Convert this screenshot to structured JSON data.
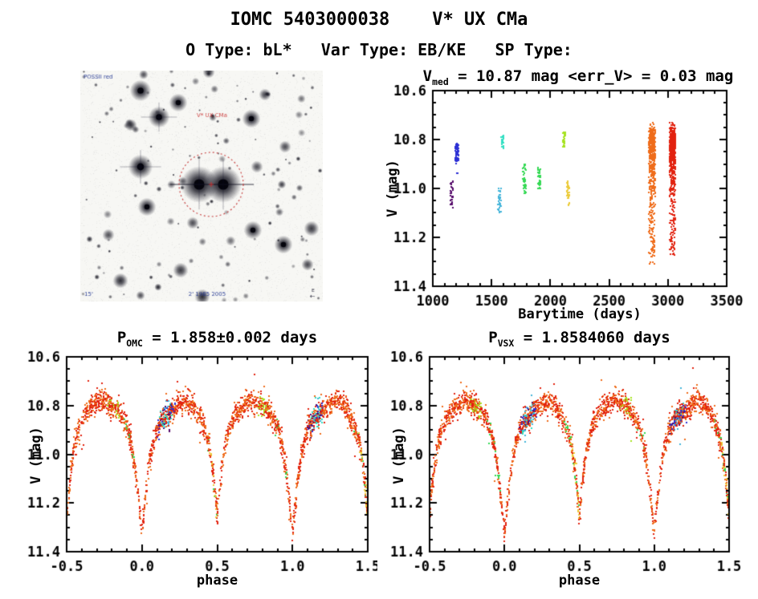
{
  "header": {
    "title": "IOMC 5403000038    V* UX CMa",
    "subtitle": "O Type: bL*   Var Type: EB/KE   SP Type:"
  },
  "palette": {
    "purple": "#550a6a",
    "blue": "#2b2fd4",
    "cyan": "#30dfc2",
    "lightblue": "#43b4da",
    "green": "#35d954",
    "yellowgreen": "#a6e320",
    "yellow": "#eccb38",
    "orange": "#ef6c1a",
    "red": "#e2220f",
    "axis": "#000000",
    "annotation_red": "#c43434",
    "annotation_blue": "#1a2f8f"
  },
  "finder_chart": {
    "survey_label": "POSSII red",
    "target_label": "V* UX CMa",
    "epoch_label": "2' 1985 2005",
    "scale_label": "15'",
    "compass_label": "E"
  },
  "folded_model": {
    "phase": [
      0.0,
      0.02,
      0.045,
      0.07,
      0.1,
      0.14,
      0.18,
      0.22,
      0.26,
      0.3,
      0.34,
      0.38,
      0.42,
      0.45,
      0.475,
      0.5,
      0.525,
      0.55,
      0.58,
      0.62,
      0.66,
      0.7,
      0.74,
      0.78,
      0.82,
      0.86,
      0.9,
      0.93,
      0.955,
      0.98,
      1.0
    ],
    "mag": [
      11.32,
      11.2,
      11.05,
      10.97,
      10.9,
      10.86,
      10.83,
      10.81,
      10.79,
      10.78,
      10.8,
      10.84,
      10.9,
      10.97,
      11.08,
      11.26,
      11.08,
      10.97,
      10.9,
      10.84,
      10.81,
      10.79,
      10.78,
      10.79,
      10.81,
      10.84,
      10.89,
      10.96,
      11.06,
      11.2,
      11.32
    ]
  },
  "phase_color_mix": {
    "red": 0.46,
    "orange": 0.38,
    "minor": [
      {
        "color": "green",
        "windows": [
          [
            0.4,
            0.5
          ],
          [
            0.88,
            0.98
          ]
        ]
      },
      {
        "color": "purple",
        "windows": [
          [
            0.1,
            0.2
          ]
        ]
      },
      {
        "color": "blue",
        "windows": [
          [
            0.1,
            0.22
          ]
        ]
      },
      {
        "color": "cyan",
        "windows": [
          [
            0.12,
            0.2
          ]
        ]
      },
      {
        "color": "lightblue",
        "windows": [
          [
            0.13,
            0.19
          ]
        ]
      },
      {
        "color": "yellowgreen",
        "windows": [
          [
            0.77,
            0.85
          ]
        ]
      },
      {
        "color": "yellow",
        "windows": [
          [
            0.44,
            0.5
          ]
        ]
      }
    ]
  },
  "chart_data": [
    {
      "type": "scatter",
      "name": "v-magnitude-vs-barytime",
      "title_parts": {
        "base": "V",
        "sub": "med",
        "rest": " = 10.87 mag <err_V> = 0.03 mag"
      },
      "xlabel": "Barytime (days)",
      "ylabel": "V (mag)",
      "xlim": [
        1000,
        3500
      ],
      "ylim": [
        10.6,
        11.4
      ],
      "y_inverted": true,
      "xticks": [
        "1000",
        "1500",
        "2000",
        "2500",
        "3000",
        "3500"
      ],
      "yticks": [
        "10.6",
        "10.8",
        "11.0",
        "11.2",
        "11.4"
      ],
      "x_minor_step": 100,
      "y_minor_step": 0.05,
      "seed": 20240,
      "clusters": [
        {
          "t": 1160,
          "jitter": 13,
          "color": "purple",
          "n": 28,
          "mag_min": 10.97,
          "mag_max": 11.08,
          "mode": "uniform"
        },
        {
          "t": 1205,
          "jitter": 13,
          "color": "blue",
          "n": 75,
          "mag_min": 10.79,
          "mag_max": 10.94,
          "core_min": 10.82,
          "core_max": 10.89,
          "mode": "core"
        },
        {
          "t": 1568,
          "jitter": 12,
          "color": "lightblue",
          "n": 34,
          "mag_min": 11.0,
          "mag_max": 11.1,
          "mode": "uniform"
        },
        {
          "t": 1593,
          "jitter": 12,
          "color": "cyan",
          "n": 26,
          "mag_min": 10.78,
          "mag_max": 10.84,
          "mode": "uniform"
        },
        {
          "t": 1778,
          "jitter": 13,
          "color": "green",
          "n": 40,
          "mag_min": 10.9,
          "mag_max": 11.02,
          "mode": "uniform"
        },
        {
          "t": 1905,
          "jitter": 13,
          "color": "green",
          "n": 40,
          "mag_min": 10.91,
          "mag_max": 11.01,
          "mode": "uniform"
        },
        {
          "t": 2118,
          "jitter": 12,
          "color": "yellowgreen",
          "n": 30,
          "mag_min": 10.77,
          "mag_max": 10.83,
          "mode": "uniform"
        },
        {
          "t": 2152,
          "jitter": 12,
          "color": "yellow",
          "n": 32,
          "mag_min": 10.97,
          "mag_max": 11.07,
          "mode": "uniform"
        },
        {
          "t": 2865,
          "jitter": 26,
          "color": "orange",
          "n": 540,
          "mag_min": 10.71,
          "mag_max": 11.34,
          "mode": "lightcurve"
        },
        {
          "t": 3040,
          "jitter": 24,
          "color": "red",
          "n": 580,
          "mag_min": 10.73,
          "mag_max": 11.28,
          "mode": "lightcurve"
        }
      ]
    },
    {
      "type": "scatter",
      "name": "phase-folded-omc-period",
      "title_parts": {
        "base": "P",
        "sub": "OMC",
        "rest": " = 1.858±0.002 days"
      },
      "xlabel": "phase",
      "ylabel": "V (mag)",
      "xlim": [
        -0.5,
        1.5
      ],
      "ylim": [
        10.6,
        11.4
      ],
      "y_inverted": true,
      "xticks": [
        "-0.5",
        "0.0",
        "0.5",
        "1.0",
        "1.5"
      ],
      "yticks": [
        "10.6",
        "10.8",
        "11.0",
        "11.2",
        "11.4"
      ],
      "x_minor_step": 0.1,
      "y_minor_step": 0.05,
      "n_points": 2400,
      "noise_sigma": 0.022,
      "seed": 777
    },
    {
      "type": "scatter",
      "name": "phase-folded-vsx-period",
      "title_parts": {
        "base": "P",
        "sub": "VSX",
        "rest": " = 1.8584060 days"
      },
      "xlabel": "phase",
      "ylabel": "V (mag)",
      "xlim": [
        -0.5,
        1.5
      ],
      "ylim": [
        10.6,
        11.4
      ],
      "y_inverted": true,
      "xticks": [
        "-0.5",
        "0.0",
        "0.5",
        "1.0",
        "1.5"
      ],
      "yticks": [
        "10.6",
        "10.8",
        "11.0",
        "11.2",
        "11.4"
      ],
      "x_minor_step": 0.1,
      "y_minor_step": 0.05,
      "n_points": 2400,
      "noise_sigma": 0.022,
      "seed": 999
    }
  ]
}
